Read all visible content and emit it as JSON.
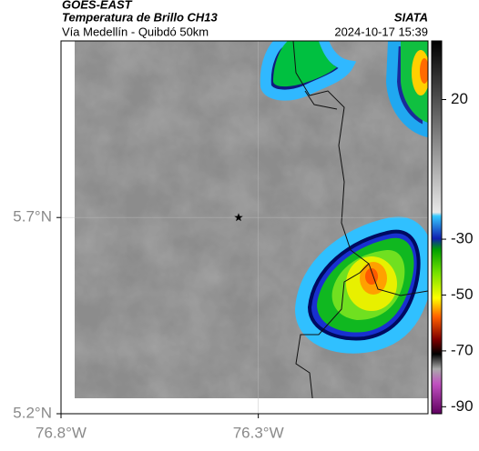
{
  "header": {
    "title": "GOES-EAST",
    "subtitle": "Temperatura de Brillo CH13",
    "region": "Vía Medellín - Quibdó 50km",
    "source": "SIATA",
    "timestamp": "2024-10-17 15:39"
  },
  "map": {
    "xlim": [
      -76.8,
      -75.87
    ],
    "ylim": [
      5.2,
      6.15
    ],
    "xticks": [
      {
        "value": -76.8,
        "label": "76.8°W"
      },
      {
        "value": -76.3,
        "label": "76.3°W"
      }
    ],
    "yticks": [
      {
        "value": 5.7,
        "label": "5.7°N"
      },
      {
        "value": 5.2,
        "label": "5.2°N"
      }
    ],
    "marker": {
      "lon": -76.35,
      "lat": 5.7
    }
  },
  "colorbar": {
    "lim": [
      -92.5,
      41
    ],
    "ticks": [
      20,
      -30,
      -50,
      -70,
      -90
    ]
  }
}
